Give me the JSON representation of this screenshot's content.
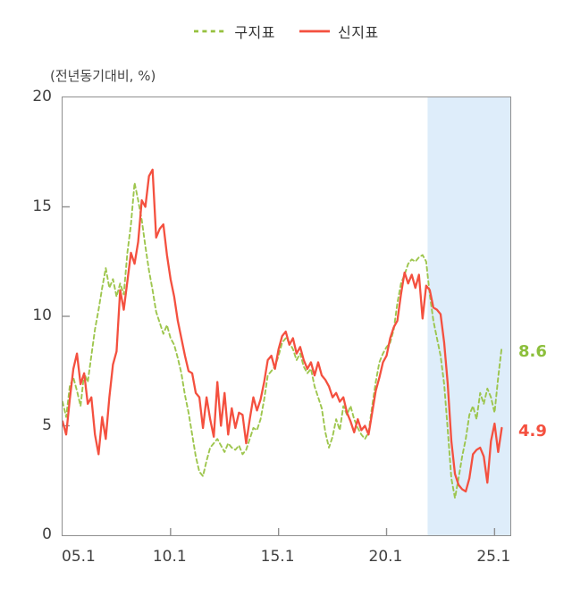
{
  "legend": {
    "old_indicator_label": "구지표",
    "new_indicator_label": "신지표"
  },
  "axis_unit_label": "(전년동기대비, %)",
  "end_labels": [
    {
      "text": "8.6",
      "series": "구지표",
      "color": "#8cbf3c"
    },
    {
      "text": "4.9",
      "series": "신지표",
      "color": "#f4503f"
    }
  ],
  "colors": {
    "old_indicator": "#96c13f",
    "new_indicator": "#f4503f",
    "highlight_band": "#deedfa",
    "frame": "#8f8f8f",
    "tick_text": "#404040"
  },
  "chart_data": {
    "type": "line",
    "title": "",
    "ylabel": "(전년동기대비, %)",
    "xlabel": "",
    "x_range": [
      2005.0,
      2025.73
    ],
    "ylim": [
      0,
      20
    ],
    "grid": false,
    "legend_position": "top-center",
    "highlight_band": {
      "from": 2021.9,
      "to": 2025.73,
      "color": "#deedfa"
    },
    "y_ticks": [
      0,
      5,
      10,
      15,
      20
    ],
    "x_ticks": [
      {
        "label": "05.1",
        "t": 2005.0,
        "tick_mark": false
      },
      {
        "label": "10.1",
        "t": 2010.0,
        "tick_mark": true
      },
      {
        "label": "15.1",
        "t": 2015.0,
        "tick_mark": true
      },
      {
        "label": "20.1",
        "t": 2020.0,
        "tick_mark": true
      },
      {
        "label": "25.1",
        "t": 2025.0,
        "tick_mark": true
      }
    ],
    "x_start": 2005.0,
    "x_step": 0.1666667,
    "series": [
      {
        "name": "구지표",
        "style": "dashed",
        "color": "#96c13f",
        "end_value": 8.6,
        "values": [
          6.1,
          5.4,
          6.8,
          7.2,
          6.6,
          5.9,
          7.4,
          7.0,
          8.2,
          9.4,
          10.3,
          11.3,
          12.2,
          11.3,
          11.7,
          10.9,
          11.5,
          11.0,
          12.9,
          14.2,
          16.1,
          15.3,
          14.4,
          13.2,
          12.1,
          11.2,
          10.2,
          9.7,
          9.2,
          9.6,
          9.0,
          8.7,
          8.1,
          7.4,
          6.4,
          5.6,
          4.6,
          3.6,
          2.9,
          2.7,
          3.4,
          4.0,
          4.2,
          4.4,
          4.1,
          3.8,
          4.2,
          4.0,
          3.9,
          4.1,
          3.7,
          3.9,
          4.4,
          4.9,
          4.8,
          5.3,
          6.2,
          7.3,
          7.5,
          7.7,
          8.2,
          8.8,
          9.0,
          8.8,
          8.5,
          8.0,
          8.3,
          7.7,
          7.4,
          7.6,
          6.8,
          6.3,
          5.8,
          4.7,
          4.0,
          4.5,
          5.3,
          4.8,
          5.9,
          5.5,
          5.9,
          5.3,
          4.9,
          4.6,
          4.4,
          4.7,
          5.9,
          7.0,
          7.9,
          8.3,
          8.6,
          8.8,
          9.4,
          10.6,
          11.5,
          11.9,
          12.4,
          12.6,
          12.5,
          12.7,
          12.8,
          12.5,
          11.0,
          9.8,
          9.0,
          8.2,
          6.9,
          4.8,
          2.6,
          1.7,
          2.6,
          3.6,
          4.4,
          5.5,
          5.9,
          5.3,
          6.5,
          6.0,
          6.7,
          6.3,
          5.6,
          7.2,
          8.6
        ]
      },
      {
        "name": "신지표",
        "style": "solid",
        "color": "#f4503f",
        "end_value": 4.9,
        "values": [
          5.2,
          4.6,
          6.2,
          7.6,
          8.3,
          6.9,
          7.4,
          6.0,
          6.3,
          4.6,
          3.7,
          5.4,
          4.4,
          6.3,
          7.8,
          8.4,
          11.2,
          10.3,
          11.6,
          12.9,
          12.4,
          13.4,
          15.3,
          15.0,
          16.4,
          16.7,
          13.6,
          14.0,
          14.2,
          12.8,
          11.7,
          10.9,
          9.8,
          9.0,
          8.2,
          7.5,
          7.4,
          6.5,
          6.3,
          4.9,
          6.3,
          5.3,
          4.5,
          7.0,
          5.0,
          6.5,
          4.6,
          5.8,
          4.9,
          5.6,
          5.5,
          4.2,
          5.3,
          6.3,
          5.7,
          6.2,
          7.0,
          8.0,
          8.2,
          7.6,
          8.5,
          9.1,
          9.3,
          8.7,
          9.0,
          8.3,
          8.6,
          8.0,
          7.6,
          7.9,
          7.3,
          7.9,
          7.3,
          7.1,
          6.8,
          6.3,
          6.5,
          6.1,
          6.3,
          5.6,
          5.2,
          4.7,
          5.3,
          4.8,
          5.0,
          4.6,
          5.6,
          6.6,
          7.2,
          7.9,
          8.2,
          9.0,
          9.5,
          9.8,
          11.0,
          12.0,
          11.5,
          11.9,
          11.3,
          11.9,
          9.9,
          11.4,
          11.2,
          10.4,
          10.3,
          10.1,
          8.8,
          6.9,
          4.3,
          2.8,
          2.3,
          2.1,
          2.0,
          2.6,
          3.7,
          3.9,
          4.0,
          3.6,
          2.4,
          4.3,
          5.1,
          3.8,
          4.9
        ]
      }
    ]
  }
}
